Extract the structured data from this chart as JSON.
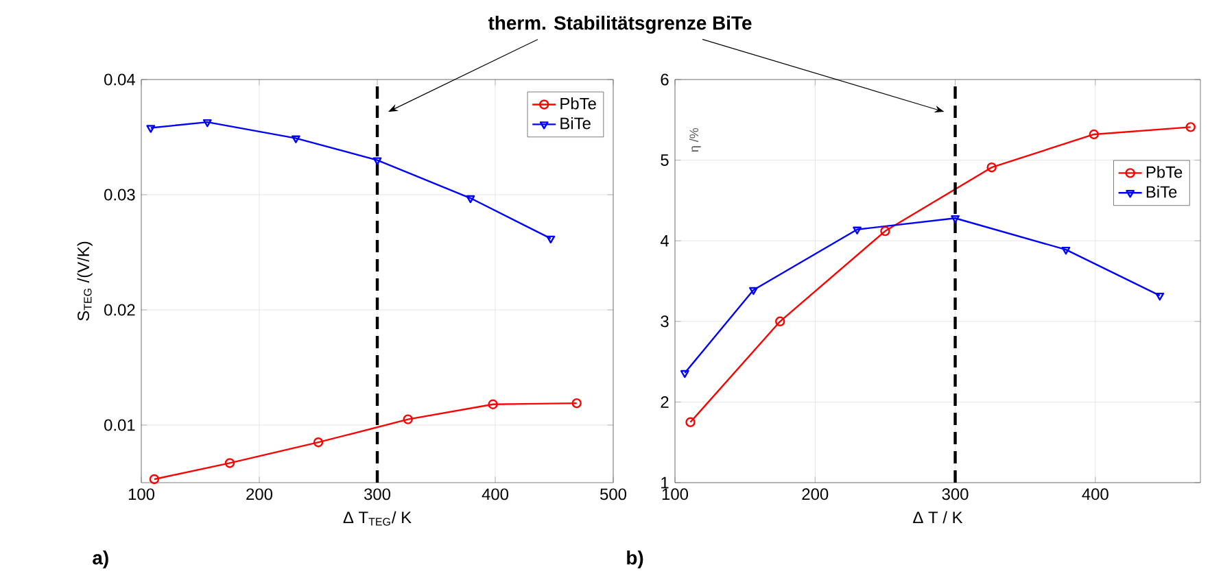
{
  "chart_data": [
    {
      "type": "line",
      "xlabel": "Δ T$_{TEG}$/ K",
      "ylabel": "S$_{TEG}$ /(V/K)",
      "annotations": [
        "therm. Stabilitätsgrenze BiTe",
        "a)"
      ],
      "xlim": [
        100,
        500
      ],
      "ylim": [
        0.005,
        0.04
      ],
      "xticks": [
        100,
        200,
        300,
        400,
        500
      ],
      "yticks": [
        0.01,
        0.02,
        0.03,
        0.04
      ],
      "grid": true,
      "legend": "top right",
      "line_style": "solid",
      "ref_lines": [
        {
          "axis": "x",
          "value": 300,
          "color": "#000000",
          "line_style": "dashed"
        }
      ],
      "series": [
        {
          "name": "PbTe",
          "color": "#ff0000",
          "marker": "circle",
          "x": [
            111,
            175,
            250,
            326,
            398,
            469
          ],
          "values": [
            0.0053,
            0.0067,
            0.0085,
            0.0105,
            0.0118,
            0.0119
          ]
        },
        {
          "name": "BiTe",
          "color": "#0000ff",
          "marker": "triangle",
          "x": [
            108,
            156,
            231,
            300,
            379,
            447
          ],
          "values": [
            0.0358,
            0.0363,
            0.0349,
            0.033,
            0.0297,
            0.0262
          ]
        }
      ]
    },
    {
      "type": "line",
      "xlabel": "Δ T / K",
      "ylabel": "η /%",
      "annotations": [
        "b)"
      ],
      "xlim": [
        100,
        475
      ],
      "ylim": [
        1,
        6
      ],
      "xticks": [
        100,
        200,
        300,
        400
      ],
      "yticks": [
        1,
        2,
        3,
        4,
        5,
        6
      ],
      "grid": true,
      "legend": "right",
      "line_style": "solid",
      "ref_lines": [
        {
          "axis": "x",
          "value": 300,
          "color": "#000000",
          "line_style": "dashed"
        }
      ],
      "series": [
        {
          "name": "PbTe",
          "color": "#ff0000",
          "marker": "circle",
          "x": [
            111,
            175,
            250,
            326,
            399,
            468
          ],
          "values": [
            1.75,
            3.0,
            4.12,
            4.91,
            5.32,
            5.41
          ]
        },
        {
          "name": "BiTe",
          "color": "#0000ff",
          "marker": "triangle",
          "x": [
            107,
            156,
            230,
            300,
            379,
            446
          ],
          "values": [
            2.36,
            3.39,
            4.14,
            4.28,
            3.89,
            3.32
          ]
        }
      ]
    }
  ]
}
